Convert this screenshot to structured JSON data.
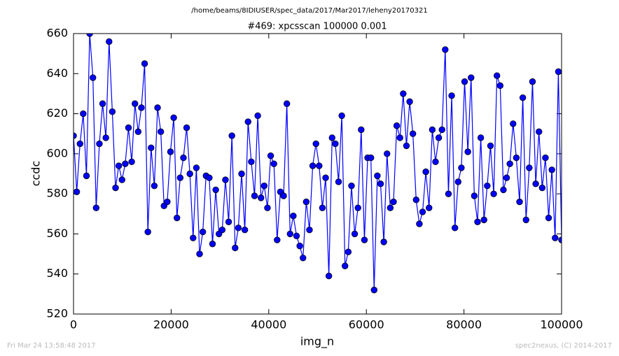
{
  "chart_data": {
    "type": "line",
    "suptitle": "/home/beams/8IDIUSER/spec_data/2017/Mar2017/leheny20170321",
    "title": "#469: xpcsscan 100000 0.001",
    "xlabel": "img_n",
    "ylabel": "ccdc",
    "footer_left": "Fri Mar 24 13:58:48 2017",
    "footer_right": "spec2nexus, (C) 2014-2017",
    "color": "#0000ff",
    "marker": "o",
    "xlim": [
      0,
      100000
    ],
    "xticks": [
      0,
      20000,
      40000,
      60000,
      80000,
      100000
    ],
    "ylim": [
      520,
      660
    ],
    "yticks": [
      520,
      540,
      560,
      580,
      600,
      620,
      640,
      660
    ],
    "x": [
      0,
      662,
      1325,
      1987,
      2649,
      3311,
      3974,
      4636,
      5298,
      5960,
      6623,
      7285,
      7947,
      8609,
      9272,
      9934,
      10596,
      11258,
      11921,
      12583,
      13245,
      13907,
      14570,
      15232,
      15894,
      16556,
      17219,
      17881,
      18543,
      19205,
      19868,
      20530,
      21192,
      21854,
      22517,
      23179,
      23841,
      24503,
      25166,
      25828,
      26490,
      27152,
      27815,
      28477,
      29139,
      29801,
      30464,
      31126,
      31788,
      32450,
      33113,
      33775,
      34437,
      35099,
      35762,
      36424,
      37086,
      37748,
      38411,
      39073,
      39735,
      40397,
      41060,
      41722,
      42384,
      43046,
      43709,
      44371,
      45033,
      45695,
      46358,
      47020,
      47682,
      48344,
      49007,
      49669,
      50331,
      50993,
      51656,
      52318,
      52980,
      53642,
      54305,
      54967,
      55629,
      56291,
      56954,
      57616,
      58278,
      58940,
      59603,
      60265,
      60927,
      61589,
      62252,
      62914,
      63576,
      64238,
      64901,
      65563,
      66225,
      66887,
      67550,
      68212,
      68874,
      69536,
      70199,
      70861,
      71523,
      72185,
      72848,
      73510,
      74172,
      74834,
      75497,
      76159,
      76821,
      77483,
      78146,
      78808,
      79470,
      80132,
      80795,
      81457,
      82119,
      82781,
      83444,
      84106,
      84768,
      85430,
      86093,
      86755,
      87417,
      88079,
      88742,
      89404,
      90066,
      90728,
      91391,
      92053,
      92715,
      93377,
      94040,
      94702,
      95364,
      96026,
      96689,
      97351,
      98013,
      98675,
      99338,
      100000
    ],
    "values": [
      609,
      581,
      605,
      620,
      589,
      660,
      638,
      573,
      605,
      625,
      608,
      656,
      621,
      583,
      594,
      587,
      595,
      613,
      596,
      625,
      611,
      623,
      645,
      561,
      603,
      584,
      623,
      611,
      574,
      576,
      601,
      618,
      568,
      588,
      598,
      613,
      590,
      558,
      593,
      550,
      561,
      589,
      588,
      555,
      582,
      560,
      562,
      587,
      566,
      609,
      553,
      563,
      590,
      562,
      616,
      596,
      579,
      619,
      578,
      584,
      573,
      599,
      595,
      557,
      581,
      579,
      625,
      560,
      569,
      559,
      554,
      548,
      576,
      562,
      594,
      605,
      594,
      573,
      588,
      539,
      608,
      605,
      586,
      619,
      544,
      551,
      584,
      560,
      573,
      612,
      557,
      598,
      598,
      532,
      589,
      585,
      556,
      600,
      573,
      576,
      614,
      608,
      630,
      604,
      626,
      610,
      577,
      565,
      571,
      591,
      573,
      612,
      596,
      608,
      612,
      652,
      580,
      629,
      563,
      586,
      593,
      636,
      601,
      638,
      579,
      566,
      608,
      567,
      584,
      604,
      580,
      639,
      634,
      582,
      588,
      595,
      615,
      598,
      576,
      628,
      567,
      593,
      636,
      585,
      611,
      583,
      598,
      568,
      592,
      558,
      641,
      557
    ]
  }
}
